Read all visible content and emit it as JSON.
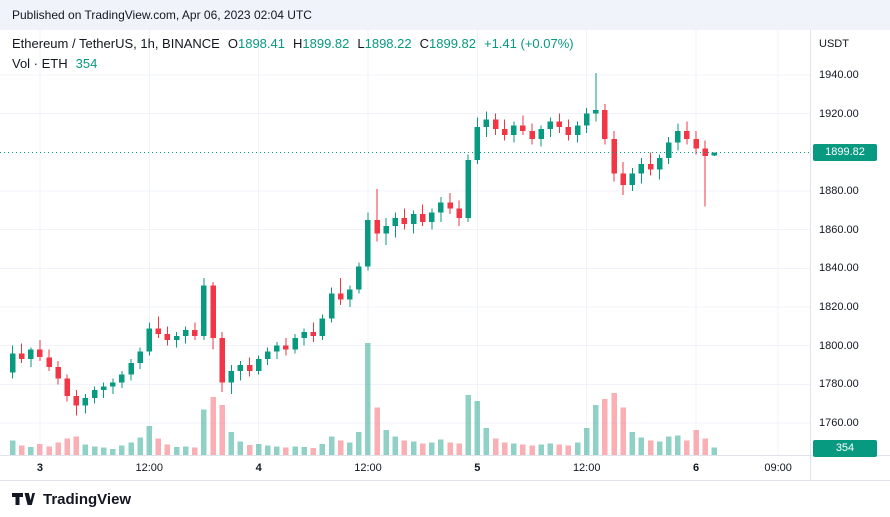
{
  "published_bar": {
    "text": "Published on TradingView.com, Apr 06, 2023 02:04 UTC"
  },
  "legend": {
    "title": "Ethereum / TetherUS, 1h, BINANCE",
    "ohlc": [
      {
        "k": "O",
        "v": "1898.41"
      },
      {
        "k": "H",
        "v": "1899.82"
      },
      {
        "k": "L",
        "v": "1898.22"
      },
      {
        "k": "C",
        "v": "1899.82"
      }
    ],
    "change": "+1.41 (+0.07%)",
    "vol_label": "Vol · ETH",
    "vol_value": "354"
  },
  "price_axis": {
    "currency": "USDT",
    "price_badge": "1899.82",
    "volume_badge": "354"
  },
  "footer": {
    "brand": "TradingView"
  },
  "colors": {
    "up": "#089981",
    "down": "#f23645",
    "vol_up": "rgba(8,153,129,0.45)",
    "vol_down": "rgba(242,54,69,0.40)",
    "badge": "#089981",
    "text": "#131722",
    "grid": "#f0f3fa",
    "axis_border": "#e0e3eb"
  },
  "chart_data": {
    "type": "candlestick",
    "title": "Ethereum / TetherUS, 1h, BINANCE",
    "symbol": "Ethereum / TetherUS",
    "exchange": "BINANCE",
    "interval": "1h",
    "unit": "USDT",
    "last_price": 1899.82,
    "last_volume": 354,
    "price_line": 1899.82,
    "y_ticks": [
      {
        "value": 1940,
        "label": "1940.00"
      },
      {
        "value": 1920,
        "label": "1920.00"
      },
      {
        "value": 1880,
        "label": "1880.00"
      },
      {
        "value": 1860,
        "label": "1860.00"
      },
      {
        "value": 1840,
        "label": "1840.00"
      },
      {
        "value": 1820,
        "label": "1820.00"
      },
      {
        "value": 1800,
        "label": "1800.00"
      },
      {
        "value": 1780,
        "label": "1780.00"
      },
      {
        "value": 1760,
        "label": "1760.00"
      }
    ],
    "x_ticks": [
      {
        "slot": 3,
        "label": "3",
        "major": true
      },
      {
        "slot": 15,
        "label": "12:00",
        "major": false
      },
      {
        "slot": 27,
        "label": "4",
        "major": true
      },
      {
        "slot": 39,
        "label": "12:00",
        "major": false
      },
      {
        "slot": 51,
        "label": "5",
        "major": true
      },
      {
        "slot": 63,
        "label": "12:00",
        "major": false
      },
      {
        "slot": 75,
        "label": "6",
        "major": true
      },
      {
        "slot": 84,
        "label": "09:00",
        "major": false
      }
    ],
    "x_slots": 88,
    "candles": [
      [
        1786,
        1800,
        1783,
        1796,
        700
      ],
      [
        1796,
        1801,
        1791,
        1793,
        450
      ],
      [
        1793,
        1799,
        1789,
        1798,
        380
      ],
      [
        1798,
        1803,
        1792,
        1794,
        520
      ],
      [
        1794,
        1798,
        1787,
        1789,
        400
      ],
      [
        1789,
        1792,
        1780,
        1783,
        600
      ],
      [
        1783,
        1785,
        1771,
        1774,
        800
      ],
      [
        1774,
        1777,
        1764,
        1769,
        900
      ],
      [
        1769,
        1775,
        1765,
        1773,
        500
      ],
      [
        1773,
        1779,
        1770,
        1777,
        420
      ],
      [
        1777,
        1781,
        1773,
        1779,
        350
      ],
      [
        1779,
        1783,
        1775,
        1781,
        300
      ],
      [
        1781,
        1787,
        1778,
        1785,
        450
      ],
      [
        1785,
        1793,
        1782,
        1791,
        600
      ],
      [
        1791,
        1799,
        1788,
        1797,
        850
      ],
      [
        1797,
        1812,
        1795,
        1809,
        1400
      ],
      [
        1809,
        1815,
        1804,
        1806,
        800
      ],
      [
        1806,
        1810,
        1800,
        1803,
        500
      ],
      [
        1803,
        1807,
        1799,
        1805,
        380
      ],
      [
        1805,
        1810,
        1801,
        1808,
        400
      ],
      [
        1808,
        1812,
        1803,
        1805,
        350
      ],
      [
        1805,
        1835,
        1803,
        1831,
        2200
      ],
      [
        1831,
        1833,
        1798,
        1804,
        2800
      ],
      [
        1804,
        1807,
        1776,
        1781,
        2400
      ],
      [
        1781,
        1790,
        1775,
        1787,
        1100
      ],
      [
        1787,
        1792,
        1782,
        1790,
        650
      ],
      [
        1790,
        1794,
        1784,
        1787,
        480
      ],
      [
        1787,
        1795,
        1785,
        1793,
        520
      ],
      [
        1793,
        1799,
        1790,
        1797,
        460
      ],
      [
        1797,
        1802,
        1793,
        1800,
        400
      ],
      [
        1800,
        1804,
        1795,
        1798,
        360
      ],
      [
        1798,
        1806,
        1796,
        1804,
        420
      ],
      [
        1804,
        1809,
        1800,
        1807,
        380
      ],
      [
        1807,
        1812,
        1802,
        1805,
        340
      ],
      [
        1805,
        1816,
        1803,
        1814,
        520
      ],
      [
        1814,
        1830,
        1812,
        1827,
        900
      ],
      [
        1827,
        1835,
        1821,
        1824,
        700
      ],
      [
        1824,
        1831,
        1820,
        1829,
        600
      ],
      [
        1829,
        1843,
        1827,
        1841,
        1100
      ],
      [
        1841,
        1869,
        1839,
        1865,
        5400
      ],
      [
        1865,
        1881,
        1854,
        1858,
        2300
      ],
      [
        1858,
        1866,
        1852,
        1862,
        1200
      ],
      [
        1862,
        1869,
        1856,
        1866,
        900
      ],
      [
        1866,
        1871,
        1860,
        1863,
        700
      ],
      [
        1863,
        1870,
        1858,
        1868,
        650
      ],
      [
        1868,
        1873,
        1862,
        1864,
        550
      ],
      [
        1864,
        1871,
        1860,
        1869,
        600
      ],
      [
        1869,
        1877,
        1864,
        1874,
        750
      ],
      [
        1874,
        1879,
        1868,
        1871,
        600
      ],
      [
        1871,
        1875,
        1862,
        1866,
        550
      ],
      [
        1866,
        1899,
        1864,
        1896,
        2900
      ],
      [
        1896,
        1918,
        1894,
        1913,
        2600
      ],
      [
        1913,
        1921,
        1908,
        1917,
        1300
      ],
      [
        1917,
        1920,
        1909,
        1912,
        800
      ],
      [
        1912,
        1917,
        1906,
        1909,
        600
      ],
      [
        1909,
        1916,
        1905,
        1914,
        550
      ],
      [
        1914,
        1919,
        1909,
        1911,
        500
      ],
      [
        1911,
        1915,
        1904,
        1907,
        450
      ],
      [
        1907,
        1914,
        1903,
        1912,
        500
      ],
      [
        1912,
        1918,
        1908,
        1916,
        550
      ],
      [
        1916,
        1920,
        1910,
        1913,
        500
      ],
      [
        1913,
        1917,
        1906,
        1909,
        450
      ],
      [
        1909,
        1916,
        1905,
        1914,
        600
      ],
      [
        1914,
        1923,
        1910,
        1920,
        1300
      ],
      [
        1920,
        1941,
        1916,
        1922,
        2400
      ],
      [
        1922,
        1925,
        1904,
        1907,
        2700
      ],
      [
        1907,
        1911,
        1885,
        1889,
        3000
      ],
      [
        1889,
        1895,
        1878,
        1883,
        2300
      ],
      [
        1883,
        1892,
        1880,
        1889,
        1100
      ],
      [
        1889,
        1897,
        1884,
        1894,
        850
      ],
      [
        1894,
        1900,
        1888,
        1891,
        700
      ],
      [
        1891,
        1899,
        1886,
        1897,
        650
      ],
      [
        1897,
        1908,
        1894,
        1905,
        900
      ],
      [
        1905,
        1915,
        1901,
        1911,
        950
      ],
      [
        1911,
        1916,
        1904,
        1907,
        700
      ],
      [
        1907,
        1911,
        1899,
        1902,
        1200
      ],
      [
        1902,
        1906,
        1872,
        1898,
        800
      ],
      [
        1898.41,
        1899.82,
        1898.22,
        1899.82,
        354
      ]
    ]
  }
}
